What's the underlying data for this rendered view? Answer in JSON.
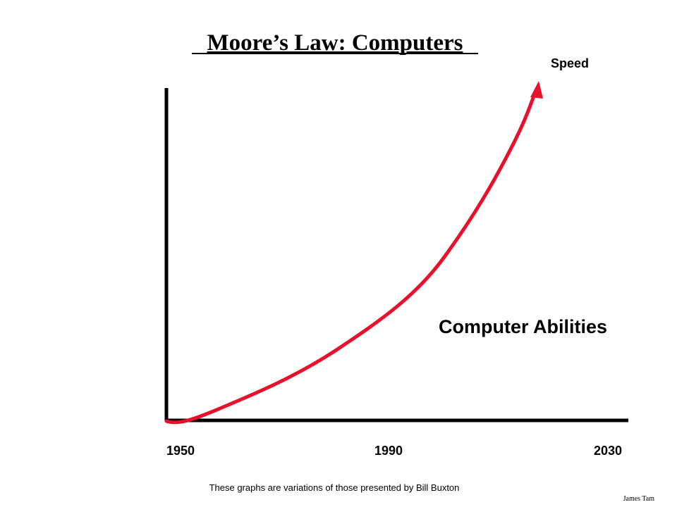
{
  "slide": {
    "title": "Moore’s Law: Computers",
    "y_axis_label": "Speed",
    "curve_label": "Computer Abilities",
    "x_labels": [
      1950,
      1990,
      2030
    ],
    "footnote": "These graphs are variations of those presented by Bill Buxton",
    "author": "James Tam"
  }
}
